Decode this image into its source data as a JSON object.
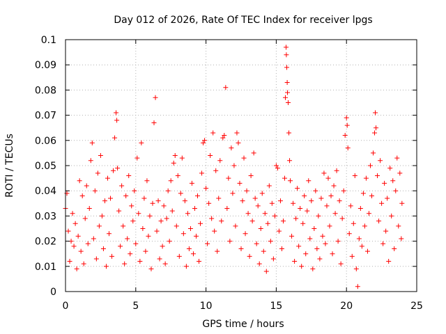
{
  "chart_data": {
    "type": "scatter",
    "title": "Day 012 of 2026, Rate Of TEC Index for receiver lpgs",
    "xlabel": "GPS time / hours",
    "ylabel": "ROTI / TECUs",
    "xlim": [
      0,
      25
    ],
    "ylim": [
      0,
      0.1
    ],
    "xticks": [
      0,
      5,
      10,
      15,
      20,
      25
    ],
    "xtick_labels": [
      "0",
      "5",
      "10",
      "15",
      "20",
      "25"
    ],
    "yticks": [
      0,
      0.01,
      0.02,
      0.03,
      0.04,
      0.05,
      0.06,
      0.07,
      0.08,
      0.09,
      0.1
    ],
    "ytick_labels": [
      "0",
      "0.01",
      "0.02",
      "0.03",
      "0.04",
      "0.05",
      "0.06",
      "0.07",
      "0.08",
      "0.09",
      "0.1"
    ],
    "grid": true,
    "marker": "plus",
    "series": [
      {
        "color": "#ff0000",
        "points": [
          [
            0.0,
            0.033
          ],
          [
            0.1,
            0.039
          ],
          [
            0.2,
            0.024
          ],
          [
            0.3,
            0.012
          ],
          [
            0.4,
            0.02
          ],
          [
            0.5,
            0.031
          ],
          [
            0.6,
            0.018
          ],
          [
            0.7,
            0.027
          ],
          [
            0.8,
            0.009
          ],
          [
            0.9,
            0.022
          ],
          [
            1.0,
            0.044
          ],
          [
            1.1,
            0.016
          ],
          [
            1.2,
            0.038
          ],
          [
            1.3,
            0.011
          ],
          [
            1.4,
            0.029
          ],
          [
            1.5,
            0.042
          ],
          [
            1.6,
            0.019
          ],
          [
            1.7,
            0.033
          ],
          [
            1.8,
            0.052
          ],
          [
            1.9,
            0.059
          ],
          [
            2.0,
            0.021
          ],
          [
            2.1,
            0.04
          ],
          [
            2.2,
            0.013
          ],
          [
            2.3,
            0.047
          ],
          [
            2.4,
            0.026
          ],
          [
            2.5,
            0.054
          ],
          [
            2.6,
            0.03
          ],
          [
            2.7,
            0.017
          ],
          [
            2.8,
            0.036
          ],
          [
            2.9,
            0.01
          ],
          [
            3.0,
            0.045
          ],
          [
            3.1,
            0.023
          ],
          [
            3.2,
            0.037
          ],
          [
            3.3,
            0.014
          ],
          [
            3.4,
            0.048
          ],
          [
            3.5,
            0.061
          ],
          [
            3.6,
            0.071
          ],
          [
            3.65,
            0.068
          ],
          [
            3.7,
            0.049
          ],
          [
            3.8,
            0.032
          ],
          [
            3.9,
            0.018
          ],
          [
            4.0,
            0.042
          ],
          [
            4.1,
            0.026
          ],
          [
            4.2,
            0.011
          ],
          [
            4.3,
            0.038
          ],
          [
            4.4,
            0.021
          ],
          [
            4.5,
            0.046
          ],
          [
            4.6,
            0.015
          ],
          [
            4.7,
            0.034
          ],
          [
            4.8,
            0.028
          ],
          [
            4.9,
            0.04
          ],
          [
            5.0,
            0.019
          ],
          [
            5.1,
            0.053
          ],
          [
            5.2,
            0.031
          ],
          [
            5.3,
            0.012
          ],
          [
            5.4,
            0.059
          ],
          [
            5.5,
            0.025
          ],
          [
            5.6,
            0.037
          ],
          [
            5.7,
            0.016
          ],
          [
            5.8,
            0.044
          ],
          [
            5.9,
            0.022
          ],
          [
            6.0,
            0.03
          ],
          [
            6.1,
            0.009
          ],
          [
            6.2,
            0.035
          ],
          [
            6.3,
            0.067
          ],
          [
            6.4,
            0.077
          ],
          [
            6.5,
            0.024
          ],
          [
            6.6,
            0.036
          ],
          [
            6.7,
            0.013
          ],
          [
            6.8,
            0.028
          ],
          [
            6.9,
            0.018
          ],
          [
            7.0,
            0.034
          ],
          [
            7.1,
            0.011
          ],
          [
            7.2,
            0.029
          ],
          [
            7.3,
            0.04
          ],
          [
            7.4,
            0.02
          ],
          [
            7.5,
            0.044
          ],
          [
            7.6,
            0.032
          ],
          [
            7.7,
            0.051
          ],
          [
            7.8,
            0.054
          ],
          [
            7.9,
            0.026
          ],
          [
            8.0,
            0.046
          ],
          [
            8.1,
            0.014
          ],
          [
            8.2,
            0.039
          ],
          [
            8.3,
            0.053
          ],
          [
            8.4,
            0.023
          ],
          [
            8.5,
            0.036
          ],
          [
            8.6,
            0.01
          ],
          [
            8.7,
            0.031
          ],
          [
            8.8,
            0.017
          ],
          [
            8.9,
            0.025
          ],
          [
            9.0,
            0.043
          ],
          [
            9.1,
            0.015
          ],
          [
            9.2,
            0.033
          ],
          [
            9.3,
            0.022
          ],
          [
            9.4,
            0.038
          ],
          [
            9.5,
            0.012
          ],
          [
            9.6,
            0.027
          ],
          [
            9.7,
            0.047
          ],
          [
            9.8,
            0.059
          ],
          [
            9.9,
            0.06
          ],
          [
            10.0,
            0.041
          ],
          [
            10.1,
            0.019
          ],
          [
            10.2,
            0.035
          ],
          [
            10.3,
            0.054
          ],
          [
            10.4,
            0.029
          ],
          [
            10.5,
            0.063
          ],
          [
            10.6,
            0.024
          ],
          [
            10.7,
            0.048
          ],
          [
            10.8,
            0.016
          ],
          [
            10.9,
            0.037
          ],
          [
            11.0,
            0.052
          ],
          [
            11.1,
            0.028
          ],
          [
            11.2,
            0.061
          ],
          [
            11.3,
            0.062
          ],
          [
            11.4,
            0.081
          ],
          [
            11.5,
            0.033
          ],
          [
            11.6,
            0.045
          ],
          [
            11.7,
            0.02
          ],
          [
            11.8,
            0.057
          ],
          [
            11.9,
            0.039
          ],
          [
            12.0,
            0.05
          ],
          [
            12.1,
            0.026
          ],
          [
            12.2,
            0.063
          ],
          [
            12.3,
            0.059
          ],
          [
            12.4,
            0.043
          ],
          [
            12.5,
            0.017
          ],
          [
            12.6,
            0.036
          ],
          [
            12.7,
            0.053
          ],
          [
            12.8,
            0.023
          ],
          [
            12.9,
            0.04
          ],
          [
            13.0,
            0.031
          ],
          [
            13.1,
            0.014
          ],
          [
            13.2,
            0.046
          ],
          [
            13.3,
            0.028
          ],
          [
            13.4,
            0.055
          ],
          [
            13.5,
            0.037
          ],
          [
            13.6,
            0.019
          ],
          [
            13.7,
            0.034
          ],
          [
            13.8,
            0.011
          ],
          [
            13.9,
            0.025
          ],
          [
            14.0,
            0.039
          ],
          [
            14.1,
            0.016
          ],
          [
            14.2,
            0.031
          ],
          [
            14.3,
            0.008
          ],
          [
            14.4,
            0.027
          ],
          [
            14.5,
            0.042
          ],
          [
            14.6,
            0.02
          ],
          [
            14.7,
            0.035
          ],
          [
            14.8,
            0.013
          ],
          [
            14.9,
            0.03
          ],
          [
            15.0,
            0.05
          ],
          [
            15.1,
            0.049
          ],
          [
            15.2,
            0.024
          ],
          [
            15.3,
            0.036
          ],
          [
            15.4,
            0.017
          ],
          [
            15.5,
            0.028
          ],
          [
            15.6,
            0.045
          ],
          [
            15.65,
            0.077
          ],
          [
            15.7,
            0.097
          ],
          [
            15.72,
            0.094
          ],
          [
            15.75,
            0.089
          ],
          [
            15.78,
            0.083
          ],
          [
            15.8,
            0.079
          ],
          [
            15.85,
            0.075
          ],
          [
            15.9,
            0.063
          ],
          [
            15.95,
            0.052
          ],
          [
            16.0,
            0.044
          ],
          [
            16.1,
            0.022
          ],
          [
            16.2,
            0.035
          ],
          [
            16.3,
            0.012
          ],
          [
            16.4,
            0.029
          ],
          [
            16.5,
            0.041
          ],
          [
            16.6,
            0.018
          ],
          [
            16.7,
            0.033
          ],
          [
            16.8,
            0.01
          ],
          [
            16.9,
            0.027
          ],
          [
            17.0,
            0.038
          ],
          [
            17.1,
            0.015
          ],
          [
            17.2,
            0.032
          ],
          [
            17.3,
            0.044
          ],
          [
            17.4,
            0.021
          ],
          [
            17.5,
            0.036
          ],
          [
            17.6,
            0.009
          ],
          [
            17.7,
            0.025
          ],
          [
            17.8,
            0.04
          ],
          [
            17.9,
            0.017
          ],
          [
            18.0,
            0.03
          ],
          [
            18.1,
            0.013
          ],
          [
            18.2,
            0.037
          ],
          [
            18.3,
            0.022
          ],
          [
            18.4,
            0.047
          ],
          [
            18.5,
            0.019
          ],
          [
            18.6,
            0.034
          ],
          [
            18.7,
            0.045
          ],
          [
            18.8,
            0.026
          ],
          [
            18.9,
            0.038
          ],
          [
            19.0,
            0.015
          ],
          [
            19.1,
            0.042
          ],
          [
            19.2,
            0.031
          ],
          [
            19.3,
            0.048
          ],
          [
            19.4,
            0.02
          ],
          [
            19.5,
            0.036
          ],
          [
            19.6,
            0.011
          ],
          [
            19.7,
            0.029
          ],
          [
            19.8,
            0.04
          ],
          [
            19.9,
            0.062
          ],
          [
            20.0,
            0.069
          ],
          [
            20.05,
            0.066
          ],
          [
            20.1,
            0.057
          ],
          [
            20.2,
            0.023
          ],
          [
            20.3,
            0.034
          ],
          [
            20.4,
            0.014
          ],
          [
            20.5,
            0.027
          ],
          [
            20.6,
            0.046
          ],
          [
            20.7,
            0.009
          ],
          [
            20.8,
            0.002
          ],
          [
            20.9,
            0.021
          ],
          [
            21.0,
            0.033
          ],
          [
            21.1,
            0.018
          ],
          [
            21.2,
            0.039
          ],
          [
            21.3,
            0.026
          ],
          [
            21.4,
            0.045
          ],
          [
            21.5,
            0.016
          ],
          [
            21.6,
            0.031
          ],
          [
            21.7,
            0.05
          ],
          [
            21.8,
            0.038
          ],
          [
            21.9,
            0.055
          ],
          [
            22.0,
            0.063
          ],
          [
            22.05,
            0.071
          ],
          [
            22.1,
            0.065
          ],
          [
            22.2,
            0.046
          ],
          [
            22.3,
            0.028
          ],
          [
            22.4,
            0.052
          ],
          [
            22.5,
            0.035
          ],
          [
            22.6,
            0.019
          ],
          [
            22.7,
            0.043
          ],
          [
            22.8,
            0.024
          ],
          [
            22.9,
            0.037
          ],
          [
            23.0,
            0.012
          ],
          [
            23.1,
            0.049
          ],
          [
            23.2,
            0.03
          ],
          [
            23.3,
            0.044
          ],
          [
            23.4,
            0.017
          ],
          [
            23.5,
            0.04
          ],
          [
            23.6,
            0.053
          ],
          [
            23.7,
            0.026
          ],
          [
            23.8,
            0.047
          ],
          [
            23.9,
            0.021
          ],
          [
            23.95,
            0.035
          ]
        ]
      }
    ]
  }
}
